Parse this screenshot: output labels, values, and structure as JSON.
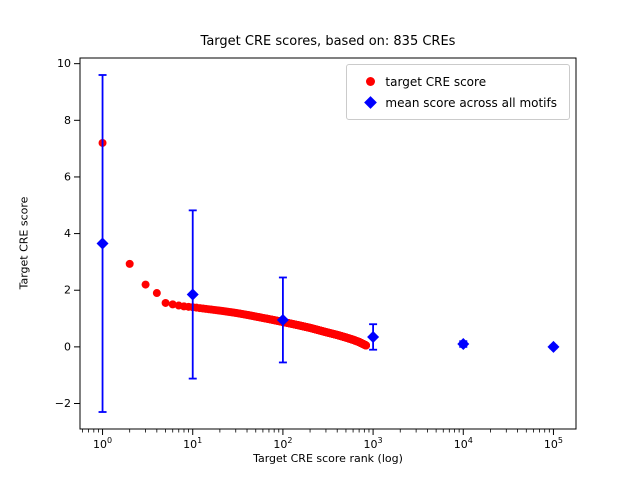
{
  "chart_data": {
    "type": "scatter",
    "title": "Target CRE scores, based on: 835 CREs",
    "xlabel": "Target CRE score rank (log)",
    "ylabel": "Target CRE score",
    "x_scale": "log",
    "xlim_log10": [
      -0.25,
      5.25
    ],
    "ylim": [
      -2.9,
      10.2
    ],
    "xticks_exponents": [
      0,
      1,
      2,
      3,
      4,
      5
    ],
    "yticks": [
      -2,
      0,
      2,
      4,
      6,
      8,
      10
    ],
    "grid": false,
    "legend_location": "upper right",
    "series": [
      {
        "name": "target CRE score",
        "marker": "circle",
        "color": "#ff0000",
        "n_points": 835,
        "anchors": [
          [
            1,
            7.2
          ],
          [
            2,
            2.93
          ],
          [
            3,
            2.2
          ],
          [
            4,
            1.9
          ],
          [
            5,
            1.55
          ],
          [
            6,
            1.5
          ],
          [
            7,
            1.46
          ],
          [
            8,
            1.43
          ],
          [
            10,
            1.4
          ],
          [
            15,
            1.33
          ],
          [
            20,
            1.28
          ],
          [
            30,
            1.2
          ],
          [
            40,
            1.13
          ],
          [
            50,
            1.07
          ],
          [
            70,
            0.98
          ],
          [
            100,
            0.88
          ],
          [
            150,
            0.76
          ],
          [
            200,
            0.67
          ],
          [
            300,
            0.52
          ],
          [
            400,
            0.42
          ],
          [
            500,
            0.33
          ],
          [
            600,
            0.25
          ],
          [
            700,
            0.17
          ],
          [
            800,
            0.08
          ],
          [
            835,
            0.05
          ]
        ]
      },
      {
        "name": "mean score across all motifs",
        "marker": "diamond",
        "color": "#0000ff",
        "x": [
          1,
          10,
          100,
          1000,
          10000,
          100000
        ],
        "y": [
          3.65,
          1.85,
          0.95,
          0.35,
          0.1,
          0.0
        ],
        "yerr": [
          5.95,
          2.97,
          1.5,
          0.45,
          0.1,
          0.05
        ]
      }
    ]
  }
}
